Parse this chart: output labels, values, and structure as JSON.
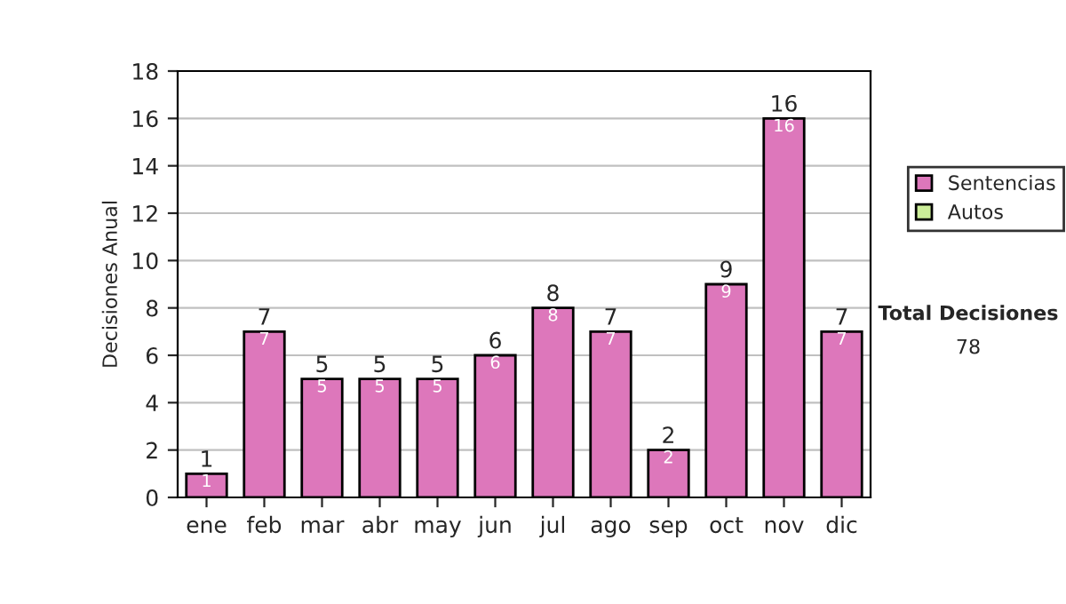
{
  "chart_data": {
    "type": "bar",
    "stacked": true,
    "ylabel": "Decisiones Anual",
    "categories": [
      "ene",
      "feb",
      "mar",
      "abr",
      "may",
      "jun",
      "jul",
      "ago",
      "sep",
      "oct",
      "nov",
      "dic"
    ],
    "series": [
      {
        "name": "Sentencias",
        "color": "#dd77bb",
        "values": [
          1,
          7,
          5,
          5,
          5,
          6,
          8,
          7,
          2,
          9,
          16,
          7
        ],
        "value_labels": [
          "1",
          "7",
          "5",
          "5",
          "5",
          "6",
          "8",
          "7",
          "2",
          "9",
          "16",
          "7"
        ]
      },
      {
        "name": "Autos",
        "color": "#ccee99",
        "values": [
          null,
          null,
          null,
          null,
          null,
          null,
          null,
          null,
          null,
          null,
          null,
          null
        ]
      }
    ],
    "totals": [
      "1",
      "7",
      "5",
      "5",
      "5",
      "6",
      "8",
      "7",
      "2",
      "9",
      "16",
      "7"
    ],
    "ylim": [
      0,
      18
    ],
    "yticks": [
      0,
      2,
      4,
      6,
      8,
      10,
      12,
      14,
      16,
      18
    ],
    "grid": "y",
    "legend": "right",
    "annotations": [
      "Total Decisiones",
      "78"
    ]
  }
}
